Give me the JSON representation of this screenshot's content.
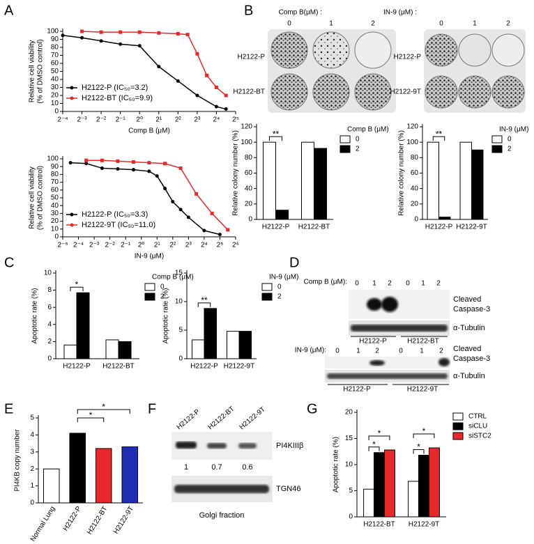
{
  "panel_labels": [
    "A",
    "B",
    "C",
    "D",
    "E",
    "F",
    "G"
  ],
  "chart_data": [
    {
      "type": "scatter",
      "xlabel": "Comp B (μM)",
      "ylabel": [
        "Relative cell viability",
        "(% of DMSO control)"
      ],
      "log_base": 2,
      "xlim": [
        0.0625,
        32
      ],
      "ylim": [
        0,
        100
      ],
      "xticks": [
        {
          "value": 0.0625,
          "label": "2⁻⁴"
        },
        {
          "value": 0.125,
          "label": "2⁻³"
        },
        {
          "value": 0.25,
          "label": "2⁻²"
        },
        {
          "value": 0.5,
          "label": "2⁻¹"
        },
        {
          "value": 1,
          "label": "2⁰"
        },
        {
          "value": 2,
          "label": "2¹"
        },
        {
          "value": 4,
          "label": "2²"
        },
        {
          "value": 8,
          "label": "2³"
        },
        {
          "value": 16,
          "label": "2⁴"
        },
        {
          "value": 32,
          "label": "2⁵"
        }
      ],
      "yticks": [
        0,
        10,
        20,
        30,
        40,
        50,
        60,
        70,
        80,
        90,
        100
      ],
      "series": [
        {
          "name": "H2122-P (IC₅₀=3.2)",
          "color": "#000000",
          "marker": "circle",
          "x": [
            0.0625,
            0.125,
            0.25,
            0.5,
            1,
            2,
            4,
            8,
            16,
            22.6
          ],
          "values": [
            95,
            92,
            88,
            84,
            82,
            56,
            38,
            20,
            6,
            3
          ]
        },
        {
          "name": "H2122-BT (IC₅₀=9.9)",
          "color": "#e8292b",
          "marker": "square",
          "x": [
            0.125,
            0.25,
            0.5,
            1,
            2,
            4,
            5.66,
            8,
            11.3,
            16,
            22.6
          ],
          "values": [
            100,
            99,
            99,
            99,
            98,
            97,
            96,
            72,
            45,
            30,
            20
          ]
        }
      ]
    },
    {
      "type": "scatter",
      "xlabel": "IN-9 (μM)",
      "ylabel": [
        "Relative cell viability",
        "(% of DMSO control)"
      ],
      "log_base": 2,
      "xlim": [
        0.03125,
        64
      ],
      "ylim": [
        0,
        100
      ],
      "xticks": [
        {
          "value": 0.03125,
          "label": "2⁻⁵"
        },
        {
          "value": 0.0625,
          "label": "2⁻⁴"
        },
        {
          "value": 0.125,
          "label": "2⁻³"
        },
        {
          "value": 0.25,
          "label": "2⁻²"
        },
        {
          "value": 0.5,
          "label": "2⁻¹"
        },
        {
          "value": 1,
          "label": "2⁰"
        },
        {
          "value": 2,
          "label": "2¹"
        },
        {
          "value": 4,
          "label": "2²"
        },
        {
          "value": 8,
          "label": "2³"
        },
        {
          "value": 16,
          "label": "2⁴"
        },
        {
          "value": 32,
          "label": "2⁵"
        },
        {
          "value": 64,
          "label": "2⁶"
        }
      ],
      "yticks": [
        0,
        10,
        20,
        30,
        40,
        50,
        60,
        70,
        80,
        90,
        100
      ],
      "series": [
        {
          "name": "H2122-P (IC₅₀=3.3)",
          "color": "#000000",
          "marker": "circle",
          "x": [
            0.044,
            0.088,
            0.177,
            0.354,
            0.707,
            1.41,
            2,
            2.83,
            4,
            5.66,
            8,
            16,
            32
          ],
          "values": [
            95,
            94,
            88,
            87,
            86,
            84,
            78,
            62,
            45,
            35,
            25,
            8,
            3
          ]
        },
        {
          "name": "H2122-9T (IC₅₀=11.0)",
          "color": "#e8292b",
          "marker": "square",
          "x": [
            0.088,
            0.177,
            0.354,
            0.707,
            1.41,
            2.83,
            5.66,
            11.3,
            22.6,
            45.3
          ],
          "values": [
            98,
            98,
            97,
            96,
            95,
            94,
            88,
            55,
            30,
            9
          ]
        }
      ]
    },
    {
      "type": "bar",
      "ylabel": "Relative colony number (%)",
      "legend_title": "Comp B (μM)",
      "categories": [
        "H2122-P",
        "H2122-BT"
      ],
      "ylim": [
        0,
        120
      ],
      "yticks": [
        0,
        20,
        40,
        60,
        80,
        100,
        120
      ],
      "annotations": [
        "**"
      ],
      "series": [
        {
          "name": "0",
          "color": "#ffffff",
          "values": [
            100,
            100
          ]
        },
        {
          "name": "2",
          "color": "#000000",
          "values": [
            12,
            92
          ]
        }
      ]
    },
    {
      "type": "bar",
      "ylabel": "Relative colony number (%)",
      "legend_title": "IN-9 (μM)",
      "categories": [
        "H2122-P",
        "H2122-9T"
      ],
      "ylim": [
        0,
        120
      ],
      "yticks": [
        0,
        20,
        40,
        60,
        80,
        100,
        120
      ],
      "annotations": [
        "**"
      ],
      "series": [
        {
          "name": "0",
          "color": "#ffffff",
          "values": [
            100,
            100
          ]
        },
        {
          "name": "2",
          "color": "#000000",
          "values": [
            3,
            90
          ]
        }
      ]
    },
    {
      "type": "bar",
      "ylabel": "Apoptotic rate (%)",
      "legend_title": "Comp B (μM)",
      "categories": [
        "H2122-P",
        "H2122-BT"
      ],
      "ylim": [
        0,
        10
      ],
      "yticks": [
        0,
        2,
        4,
        6,
        8,
        10
      ],
      "annotations": [
        "*"
      ],
      "series": [
        {
          "name": "0",
          "color": "#ffffff",
          "values": [
            1.6,
            2.2
          ]
        },
        {
          "name": "2",
          "color": "#000000",
          "values": [
            7.7,
            2.0
          ]
        }
      ]
    },
    {
      "type": "bar",
      "ylabel": "Apoptotic rate (%)",
      "legend_title": "IN-9 (μM)",
      "categories": [
        "H2122-P",
        "H2122-9T"
      ],
      "ylim": [
        0,
        15
      ],
      "yticks": [
        0,
        5,
        10,
        15
      ],
      "annotations": [
        "**"
      ],
      "series": [
        {
          "name": "0",
          "color": "#ffffff",
          "values": [
            3.3,
            4.8
          ]
        },
        {
          "name": "2",
          "color": "#000000",
          "values": [
            8.8,
            4.8
          ]
        }
      ]
    },
    {
      "type": "bar",
      "ylabel": "PI4KB copy number",
      "categories": [
        "Normal Lung",
        "H2122-P",
        "H2122-BT",
        "H2122-9T"
      ],
      "rotated_labels": true,
      "values": [
        2.0,
        4.1,
        3.2,
        3.3
      ],
      "colors": [
        "#ffffff",
        "#000000",
        "#e8292b",
        "#1f2fb4"
      ],
      "ylim": [
        0,
        5
      ],
      "yticks": [
        0,
        1,
        2,
        3,
        4,
        5
      ],
      "annotations": [
        "*",
        "*"
      ]
    },
    {
      "type": "bar",
      "ylabel": "Apoptotic rate (%)",
      "categories": [
        "H2122-BT",
        "H2122-9T"
      ],
      "ylim": [
        0,
        20
      ],
      "yticks": [
        0,
        5,
        10,
        15,
        20
      ],
      "annotations": [
        "*",
        "*",
        "*",
        "*"
      ],
      "series": [
        {
          "name": "CTRL",
          "color": "#ffffff",
          "values": [
            5.3,
            6.8
          ]
        },
        {
          "name": "siCLU",
          "color": "#000000",
          "values": [
            12.3,
            11.8
          ]
        },
        {
          "name": "siSTC2",
          "color": "#e8292b",
          "values": [
            12.8,
            13.2
          ]
        }
      ]
    }
  ],
  "colony_plates": {
    "left": {
      "treatment": "Comp B(μM) :",
      "doses": [
        "0",
        "1",
        "2"
      ],
      "rows": [
        "H2122-P",
        "H2122-BT"
      ]
    },
    "right": {
      "treatment": "IN-9 (μM) :",
      "doses": [
        "0",
        "1",
        "2"
      ],
      "rows": [
        "H2122-P",
        "H2122-9T"
      ]
    }
  },
  "western_D": {
    "top": {
      "treatment": "Comp B (μM):",
      "doses": [
        "0",
        "1",
        "2",
        "0",
        "1",
        "2"
      ],
      "bands": [
        "Cleaved",
        "Caspase-3",
        "α-Tubulin"
      ],
      "groups": [
        "H2122-P",
        "H2122-BT"
      ]
    },
    "bottom": {
      "treatment": "IN-9 (μM):",
      "doses": [
        "0",
        "1",
        "2",
        "0",
        "1",
        "2"
      ],
      "bands": [
        "Cleaved",
        "Caspase-3",
        "α-Tubulin"
      ],
      "groups": [
        "H2122-P",
        "H2122-9T"
      ]
    }
  },
  "western_F": {
    "lanes": [
      "H2122-P",
      "H2122-BT",
      "H2122-9T"
    ],
    "bands": [
      "PI4KIIIβ",
      "TGN46"
    ],
    "ratios": [
      "1",
      "0.7",
      "0.6"
    ],
    "caption": "Golgi fraction"
  }
}
